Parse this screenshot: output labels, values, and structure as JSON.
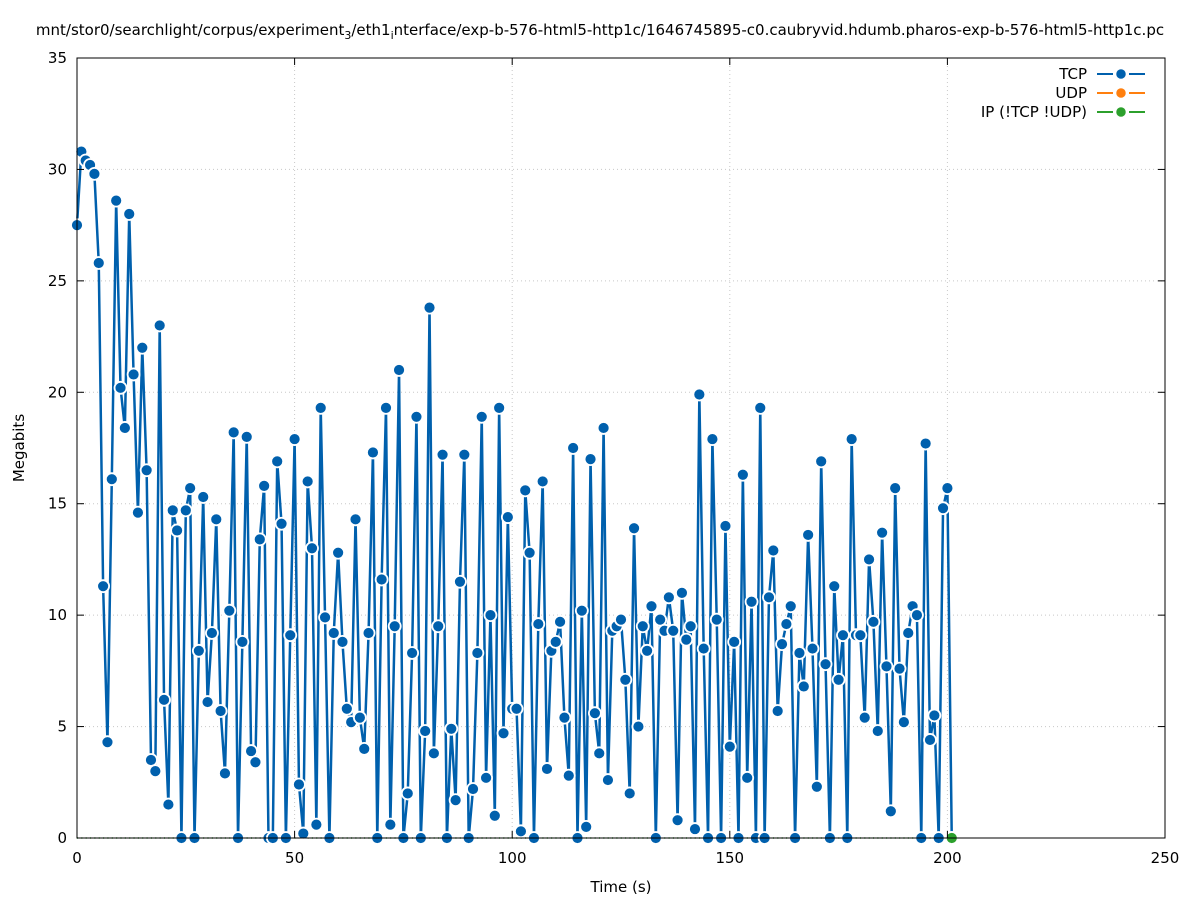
{
  "chart_data": {
    "type": "line",
    "title_parts": [
      {
        "text": "mnt/stor0/searchlight/corpus/experiment",
        "sub": false
      },
      {
        "text": "3",
        "sub": true
      },
      {
        "text": "/eth1",
        "sub": false
      },
      {
        "text": "i",
        "sub": true
      },
      {
        "text": "nterface/exp-b-576-html5-http1c/1646745895-c0.caubryvid.hdumb.pharos-exp-b-576-html5-http1c.pc",
        "sub": false
      }
    ],
    "xlabel": "Time (s)",
    "ylabel": "Megabits",
    "xlim": [
      0,
      250
    ],
    "ylim": [
      0,
      35
    ],
    "xticks": [
      0,
      50,
      100,
      150,
      200,
      250
    ],
    "yticks": [
      0,
      5,
      10,
      15,
      20,
      25,
      30,
      35
    ],
    "grid": true,
    "legend_position": "top-right",
    "colors": {
      "TCP": "#0060ad",
      "UDP": "#ff7f0e",
      "IP": "#2ca02c"
    },
    "series": [
      {
        "name": "TCP",
        "key": "TCP",
        "x_start": 0,
        "x_step": 1,
        "values": [
          27.5,
          30.8,
          30.4,
          30.2,
          29.8,
          25.8,
          11.3,
          4.3,
          16.1,
          28.6,
          20.2,
          18.4,
          28.0,
          20.8,
          14.6,
          22.0,
          16.5,
          3.5,
          3.0,
          23.0,
          6.2,
          1.5,
          14.7,
          13.8,
          0,
          14.7,
          15.7,
          0,
          8.4,
          15.3,
          6.1,
          9.2,
          14.3,
          5.7,
          2.9,
          10.2,
          18.2,
          0,
          8.8,
          18.0,
          3.9,
          3.4,
          13.4,
          15.8,
          0,
          0,
          16.9,
          14.1,
          0,
          9.1,
          17.9,
          2.4,
          0.2,
          16.0,
          13.0,
          0.6,
          19.3,
          9.9,
          0,
          9.2,
          12.8,
          8.8,
          5.8,
          5.2,
          14.3,
          5.4,
          4.0,
          9.2,
          17.3,
          0,
          11.6,
          19.3,
          0.6,
          9.5,
          21.0,
          0,
          2.0,
          8.3,
          18.9,
          0,
          4.8,
          23.8,
          3.8,
          9.5,
          17.2,
          0,
          4.9,
          1.7,
          11.5,
          17.2,
          0,
          2.2,
          8.3,
          18.9,
          2.7,
          10.0,
          1.0,
          19.3,
          4.7,
          14.4,
          5.8,
          5.8,
          0.3,
          15.6,
          12.8,
          0,
          9.6,
          16.0,
          3.1,
          8.4,
          8.8,
          9.7,
          5.4,
          2.8,
          17.5,
          0,
          10.2,
          0.5,
          17.0,
          5.6,
          3.8,
          18.4,
          2.6,
          9.3,
          9.5,
          9.8,
          7.1,
          2.0,
          13.9,
          5.0,
          9.5,
          8.4,
          10.4,
          0,
          9.8,
          9.3,
          10.8,
          9.3,
          0.8,
          11.0,
          8.9,
          9.5,
          0.4,
          19.9,
          8.5,
          0,
          17.9,
          9.8,
          0,
          14.0,
          4.1,
          8.8,
          0,
          16.3,
          2.7,
          10.6,
          0,
          19.3,
          0,
          10.8,
          12.9,
          5.7,
          8.7,
          9.6,
          10.4,
          0,
          8.3,
          6.8,
          13.6,
          8.5,
          2.3,
          16.9,
          7.8,
          0,
          11.3,
          7.1,
          9.1,
          0,
          17.9,
          9.1,
          9.1,
          5.4,
          12.5,
          9.7,
          4.8,
          13.7,
          7.7,
          1.2,
          15.7,
          7.6,
          5.2,
          9.2,
          10.4,
          10.0,
          0,
          17.7,
          4.4,
          5.5,
          0,
          14.8,
          15.7,
          0
        ]
      },
      {
        "name": "UDP",
        "key": "UDP",
        "x_start": 0,
        "x_step": 1,
        "values": []
      },
      {
        "name": "IP (!TCP  !UDP)",
        "key": "IP",
        "x_start": 201,
        "x_step": 1,
        "values": [
          0
        ]
      }
    ]
  }
}
